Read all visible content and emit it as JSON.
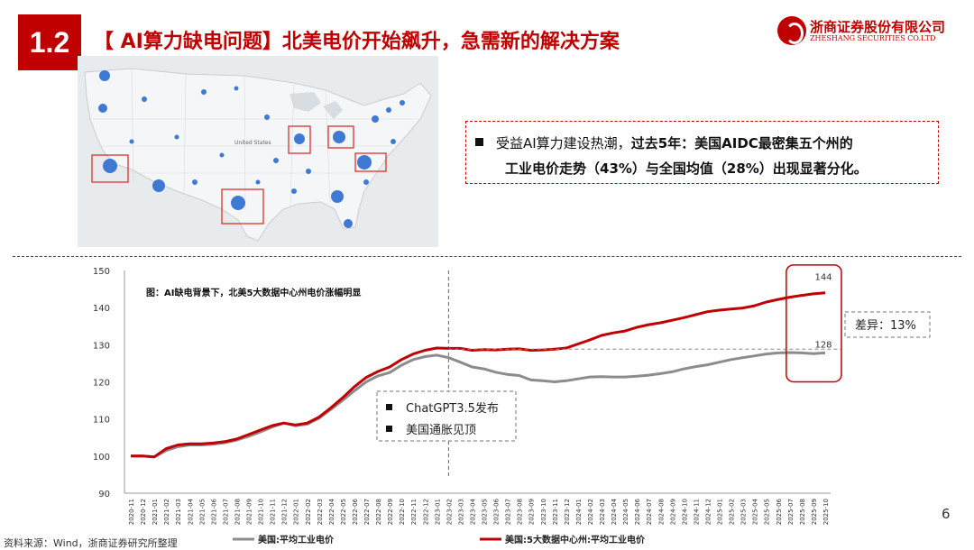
{
  "header": {
    "section_number": "1.2",
    "title": "【 AI算力缺电问题】北美电价开始飙升，急需新的解决方案",
    "logo_cn": "浙商证券股份有限公司",
    "logo_en": "ZHESHANG SECURITIES CO.LTD"
  },
  "map": {
    "country_label": "United States",
    "highlight_color": "#d9302c",
    "bubble_color": "#2f6fd1"
  },
  "callout": {
    "prefix": "受益AI算力建设热潮，",
    "bold_line1": "过去5年：美国AIDC最密集五个州的",
    "bold_line2": "工业电价走势（43%）与全国均值（28%）出现显著分化。"
  },
  "chart_data": {
    "type": "line",
    "title": "图：AI缺电背景下，北美5大数据中心州电价涨幅明显",
    "ylim": [
      90,
      150
    ],
    "yticks": [
      90,
      100,
      110,
      120,
      130,
      140,
      150
    ],
    "x": [
      "2020-11",
      "2020-12",
      "2021-01",
      "2021-02",
      "2021-03",
      "2021-04",
      "2021-05",
      "2021-06",
      "2021-07",
      "2021-08",
      "2021-09",
      "2021-10",
      "2021-11",
      "2021-12",
      "2022-01",
      "2022-02",
      "2022-03",
      "2022-04",
      "2022-05",
      "2022-06",
      "2022-07",
      "2022-08",
      "2022-09",
      "2022-10",
      "2022-11",
      "2022-12",
      "2023-01",
      "2023-02",
      "2023-03",
      "2023-04",
      "2023-05",
      "2023-06",
      "2023-07",
      "2023-08",
      "2023-09",
      "2023-10",
      "2023-11",
      "2023-12",
      "2024-01",
      "2024-02",
      "2024-03",
      "2024-04",
      "2024-05",
      "2024-06",
      "2024-07",
      "2024-08",
      "2024-09",
      "2024-10",
      "2024-11",
      "2024-12",
      "2025-01",
      "2025-02",
      "2025-03",
      "2025-04",
      "2025-05",
      "2025-06",
      "2025-07",
      "2025-08",
      "2025-09",
      "2025-10"
    ],
    "series": [
      {
        "name": "美国:平均工业电价",
        "color": "#8c8c8c",
        "values": [
          100,
          100,
          99.8,
          101.5,
          102.5,
          103,
          103,
          103.2,
          103.6,
          104.3,
          105.3,
          106.5,
          107.8,
          108.9,
          108.2,
          108.6,
          110.2,
          112.6,
          115,
          117.6,
          120,
          121.6,
          122.5,
          124.5,
          126,
          126.8,
          127.2,
          126.5,
          125.3,
          124,
          123.5,
          122.6,
          122,
          121.7,
          120.5,
          120.3,
          120,
          120.3,
          120.8,
          121.3,
          121.4,
          121.3,
          121.3,
          121.5,
          121.8,
          122.2,
          122.7,
          123.5,
          124.1,
          124.6,
          125.3,
          126,
          126.5,
          127,
          127.5,
          127.8,
          127.9,
          127.8,
          127.6,
          127.8
        ]
      },
      {
        "name": "美国:5大数据中心州:平均工业电价",
        "color": "#c00000",
        "values": [
          100,
          100,
          99.8,
          102,
          103,
          103.3,
          103.3,
          103.5,
          103.9,
          104.6,
          105.8,
          107,
          108.2,
          108.9,
          108.4,
          108.9,
          110.5,
          113,
          115.7,
          118.7,
          121.2,
          122.8,
          124,
          126,
          127.5,
          128.5,
          129.1,
          129,
          129,
          128.5,
          128.7,
          128.6,
          128.8,
          128.9,
          128.5,
          128.6,
          128.8,
          129.1,
          130.2,
          131.3,
          132.5,
          133.2,
          133.7,
          134.7,
          135.4,
          135.9,
          136.6,
          137.3,
          138.1,
          138.9,
          139.3,
          139.6,
          139.9,
          140.5,
          141.5,
          142.2,
          142.8,
          143.3,
          143.7,
          144
        ]
      }
    ],
    "annotations": {
      "end_label_red": "144",
      "end_label_gray": "128",
      "diff_label": "差异：13%",
      "event_label_1": "ChatGPT3.5发布",
      "event_label_2": "美国通胀见顶",
      "event_x": "2023-02"
    },
    "legend_position": "bottom"
  },
  "footer": {
    "source": "资料来源：Wind，浙商证券研究所整理",
    "page": "6"
  }
}
